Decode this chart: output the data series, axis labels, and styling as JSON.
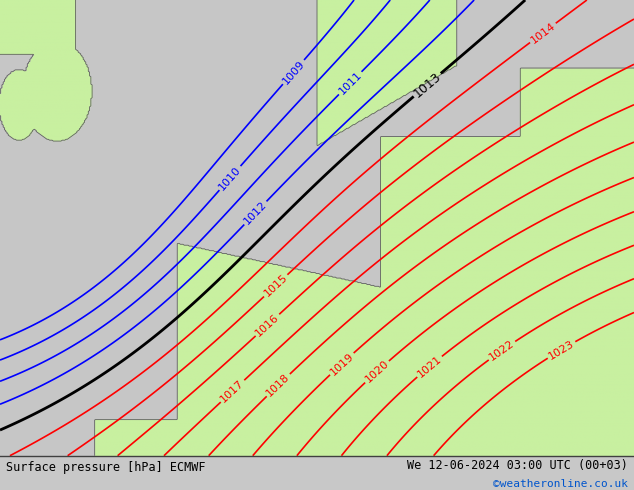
{
  "title_left": "Surface pressure [hPa] ECMWF",
  "title_right": "We 12-06-2024 03:00 UTC (00+03)",
  "title_right2": "©weatheronline.co.uk",
  "bg_color": "#c8c8c8",
  "land_color": "#c8f0a0",
  "sea_color": "#c8c8c8",
  "fig_width": 6.34,
  "fig_height": 4.9,
  "dpi": 100,
  "bottom_bar_color": "#e8e8e8",
  "isobar_values_blue": [
    1009,
    1010,
    1011,
    1012
  ],
  "isobar_values_black": [
    1013
  ],
  "isobar_values_red": [
    1014,
    1015,
    1016,
    1017,
    1018,
    1019,
    1020,
    1021,
    1022,
    1023
  ],
  "isobar_color_blue": "#0000ff",
  "isobar_color_black": "#000000",
  "isobar_color_red": "#ff0000",
  "font_size_labels": 8,
  "font_size_bottom": 8.5
}
